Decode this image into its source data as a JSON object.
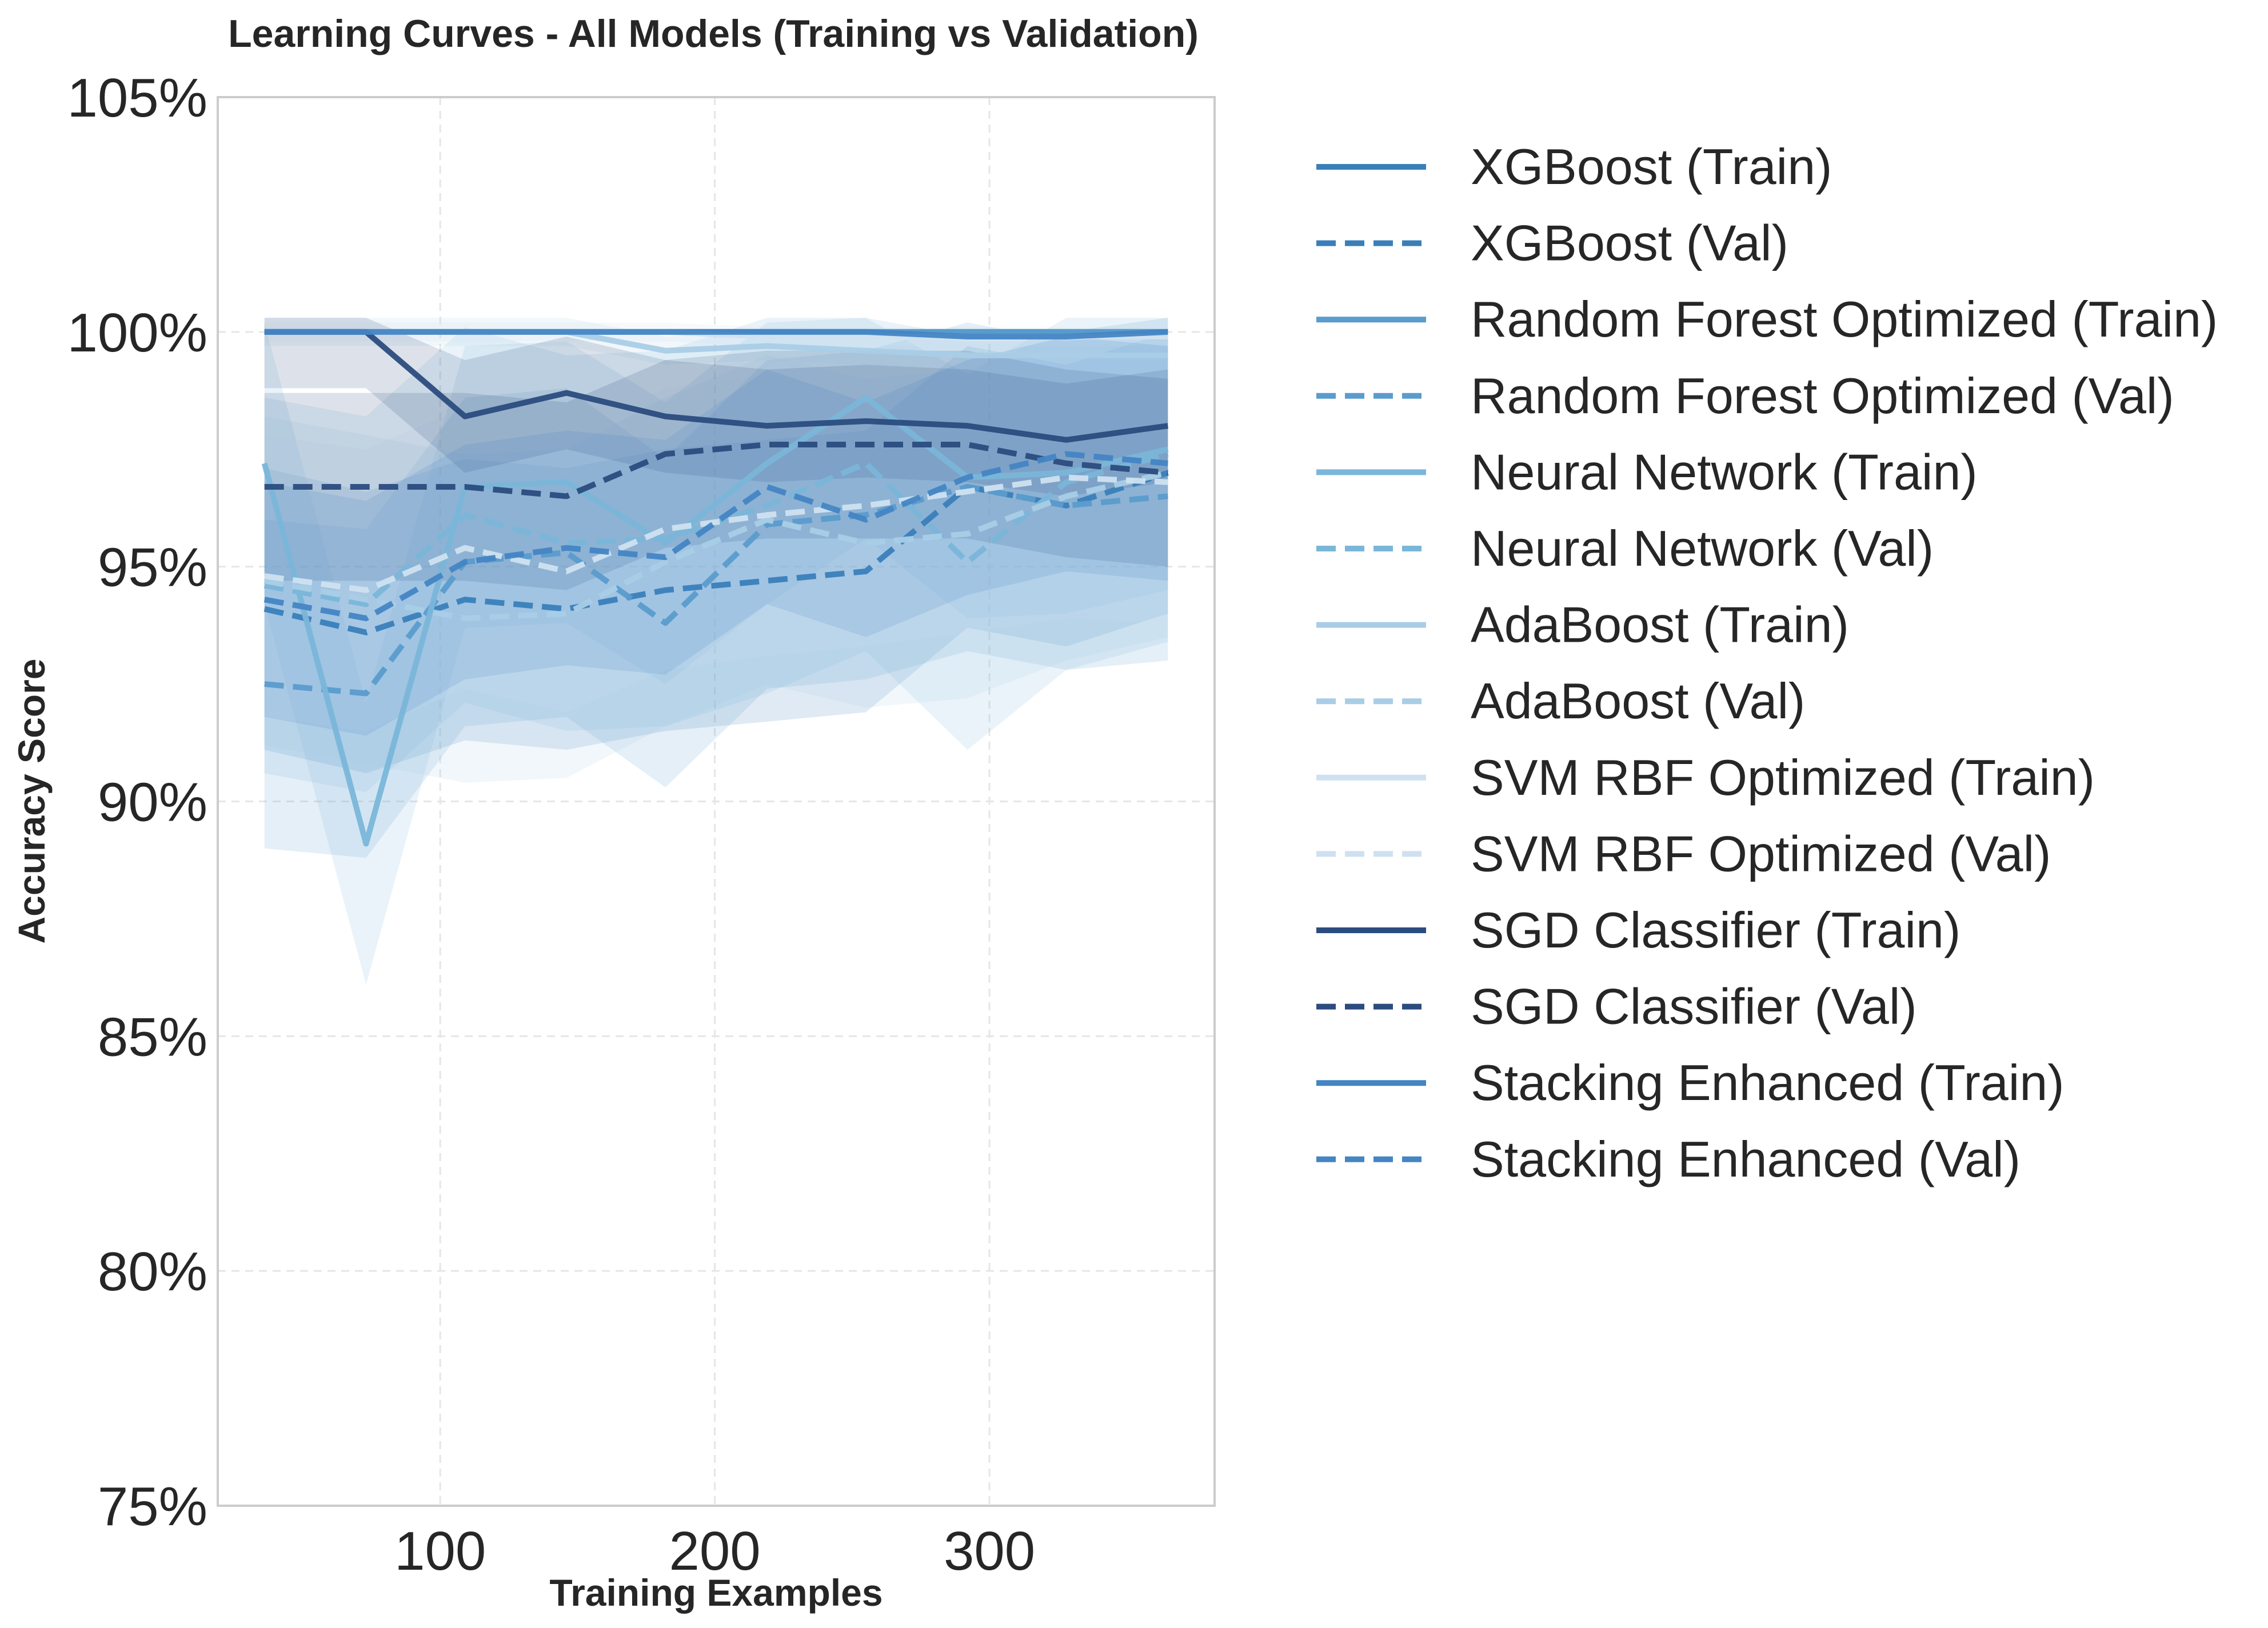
{
  "chart_data": {
    "type": "line",
    "title": "Learning Curves - All Models (Training vs Validation)",
    "xlabel": "Training Examples",
    "ylabel": "Accuracy Score",
    "x": [
      36,
      73,
      109,
      146,
      182,
      219,
      255,
      292,
      328,
      365
    ],
    "xlim": [
      19,
      382
    ],
    "ylim": [
      0.75,
      1.05
    ],
    "xticks": [
      100,
      200,
      300
    ],
    "xtick_labels": [
      "100",
      "200",
      "300"
    ],
    "yticks": [
      0.75,
      0.8,
      0.85,
      0.9,
      0.95,
      1.0,
      1.05
    ],
    "ytick_labels": [
      "75%",
      "80%",
      "85%",
      "90%",
      "95%",
      "100%",
      "105%"
    ],
    "grid": true,
    "legend_placement": "outside right, top",
    "series": [
      {
        "name": "XGBoost (Train)",
        "style": "solid",
        "color": "#3a7fba",
        "values": [
          1.0,
          1.0,
          1.0,
          1.0,
          1.0,
          1.0,
          1.0,
          1.0,
          1.0,
          1.0
        ],
        "band": 0.0
      },
      {
        "name": "XGBoost (Val)",
        "style": "dashed",
        "color": "#3a7fba",
        "values": [
          0.941,
          0.936,
          0.943,
          0.941,
          0.945,
          0.947,
          0.949,
          0.967,
          0.963,
          0.97
        ],
        "band": 0.03
      },
      {
        "name": "Random Forest Optimized (Train)",
        "style": "solid",
        "color": "#5a9ccc",
        "values": [
          1.0,
          1.0,
          1.0,
          1.0,
          1.0,
          1.0,
          1.0,
          1.0,
          1.0,
          1.0
        ],
        "band": 0.0
      },
      {
        "name": "Random Forest Optimized (Val)",
        "style": "dashed",
        "color": "#5a9ccc",
        "values": [
          0.925,
          0.923,
          0.951,
          0.953,
          0.938,
          0.959,
          0.961,
          0.967,
          0.963,
          0.965
        ],
        "band": 0.035
      },
      {
        "name": "Neural Network (Train)",
        "style": "solid",
        "color": "#7ab6d9",
        "values": [
          0.972,
          0.891,
          0.967,
          0.968,
          0.955,
          0.972,
          0.986,
          0.969,
          0.97,
          0.975
        ],
        "band": 0.03
      },
      {
        "name": "Neural Network (Val)",
        "style": "dashed",
        "color": "#7ab6d9",
        "values": [
          0.946,
          0.942,
          0.961,
          0.955,
          0.956,
          0.963,
          0.972,
          0.951,
          0.968,
          0.974
        ],
        "band": 0.04
      },
      {
        "name": "AdaBoost (Train)",
        "style": "solid",
        "color": "#a9cde6",
        "values": [
          1.0,
          1.0,
          1.0,
          1.0,
          0.996,
          0.997,
          0.996,
          0.995,
          0.995,
          0.995
        ],
        "band": 0.003
      },
      {
        "name": "AdaBoost (Val)",
        "style": "dashed",
        "color": "#a9cde6",
        "values": [
          0.947,
          0.943,
          0.939,
          0.94,
          0.951,
          0.96,
          0.955,
          0.957,
          0.965,
          0.97
        ],
        "band": 0.035
      },
      {
        "name": "SVM RBF Optimized (Train)",
        "style": "solid",
        "color": "#cfe1f0",
        "values": [
          1.0,
          1.0,
          1.0,
          1.0,
          1.0,
          0.999,
          0.999,
          0.999,
          0.999,
          0.999
        ],
        "band": 0.002
      },
      {
        "name": "SVM RBF Optimized (Val)",
        "style": "dashed",
        "color": "#cfe1f0",
        "values": [
          0.948,
          0.945,
          0.954,
          0.949,
          0.958,
          0.961,
          0.963,
          0.966,
          0.969,
          0.968
        ],
        "band": 0.03
      },
      {
        "name": "SGD Classifier (Train)",
        "style": "solid",
        "color": "#2b4c7e",
        "values": [
          1.0,
          1.0,
          0.982,
          0.987,
          0.982,
          0.98,
          0.981,
          0.98,
          0.977,
          0.98
        ],
        "band": 0.012
      },
      {
        "name": "SGD Classifier (Val)",
        "style": "dashed",
        "color": "#2b4c7e",
        "values": [
          0.967,
          0.967,
          0.967,
          0.965,
          0.974,
          0.976,
          0.976,
          0.976,
          0.972,
          0.97
        ],
        "band": 0.02
      },
      {
        "name": "Stacking Enhanced (Train)",
        "style": "solid",
        "color": "#4485c4",
        "values": [
          1.0,
          1.0,
          1.0,
          1.0,
          1.0,
          1.0,
          1.0,
          0.999,
          0.999,
          1.0
        ],
        "band": 0.0
      },
      {
        "name": "Stacking Enhanced (Val)",
        "style": "dashed",
        "color": "#4485c4",
        "values": [
          0.943,
          0.939,
          0.951,
          0.954,
          0.952,
          0.967,
          0.96,
          0.969,
          0.974,
          0.972
        ],
        "band": 0.025
      }
    ]
  }
}
